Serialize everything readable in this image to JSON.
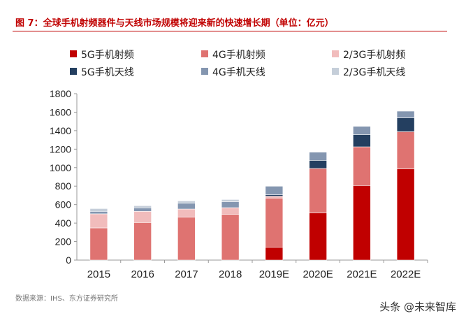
{
  "title": "图 7：全球手机射频器件与天线市场规模将迎来新的快速增长期（单位：亿元）",
  "source": "数据来源：IHS、东方证券研究所",
  "watermark": "头条 @未来智库",
  "chart_data": {
    "type": "bar",
    "stacked": true,
    "categories": [
      "2015",
      "2016",
      "2017",
      "2018",
      "2019E",
      "2020E",
      "2021E",
      "2022E"
    ],
    "ylim": [
      0,
      1800
    ],
    "yticks": [
      0,
      200,
      400,
      600,
      800,
      1000,
      1200,
      1400,
      1600,
      1800
    ],
    "grid": false,
    "legend": "top",
    "series": [
      {
        "name": "5G手机射频",
        "color": "#c00000",
        "values": [
          0,
          0,
          0,
          0,
          139,
          509,
          807,
          986
        ]
      },
      {
        "name": "4G手机射频",
        "color": "#df7371",
        "values": [
          348,
          406,
          464,
          494,
          532,
          482,
          418,
          403
        ]
      },
      {
        "name": "2/3G手机射频",
        "color": "#f1bcbc",
        "values": [
          152,
          121,
          88,
          73,
          20,
          0,
          0,
          0
        ]
      },
      {
        "name": "5G手机天线",
        "color": "#243f60",
        "values": [
          0,
          0,
          0,
          0,
          15,
          88,
          131,
          149
        ]
      },
      {
        "name": "4G手机天线",
        "color": "#8496b0",
        "values": [
          27,
          38,
          63,
          63,
          93,
          88,
          91,
          73
        ]
      },
      {
        "name": "2/3G手机天线",
        "color": "#c5ced9",
        "values": [
          30,
          23,
          25,
          25,
          0,
          0,
          0,
          0
        ]
      }
    ]
  }
}
